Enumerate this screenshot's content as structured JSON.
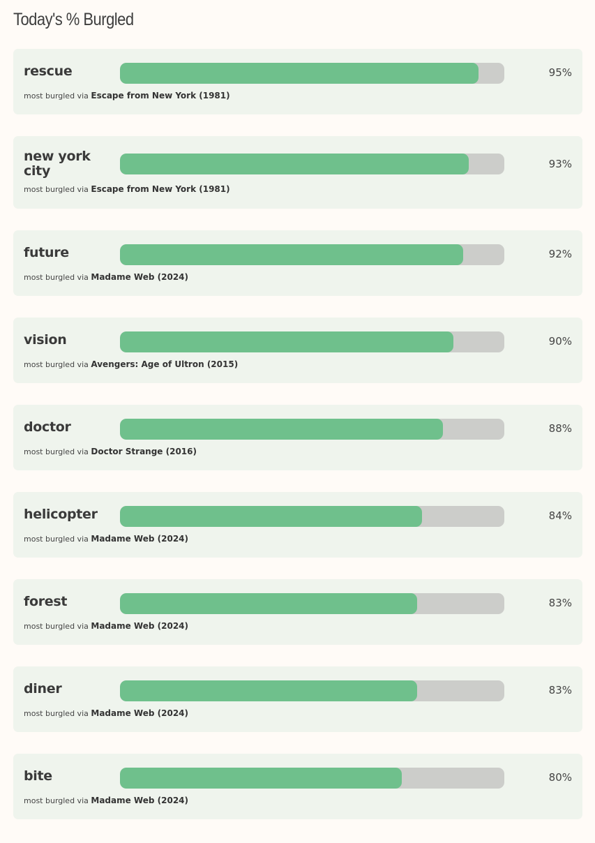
{
  "page": {
    "title": "Today's % Burgled"
  },
  "colors": {
    "background": "#fffbf7",
    "card": "#eff4ed",
    "bar_fill": "#6fc08c",
    "bar_track": "#cccdca"
  },
  "items": [
    {
      "word": "rescue",
      "percent_label": "95%",
      "percent": 95,
      "via_prefix": "most burgled via",
      "via_title": "Escape from New York (1981)"
    },
    {
      "word": "new york city",
      "percent_label": "93%",
      "percent": 93,
      "via_prefix": "most burgled via",
      "via_title": "Escape from New York (1981)"
    },
    {
      "word": "future",
      "percent_label": "92%",
      "percent": 92,
      "via_prefix": "most burgled via",
      "via_title": "Madame Web (2024)"
    },
    {
      "word": "vision",
      "percent_label": "90%",
      "percent": 90,
      "via_prefix": "most burgled via",
      "via_title": "Avengers: Age of Ultron (2015)"
    },
    {
      "word": "doctor",
      "percent_label": "88%",
      "percent": 88,
      "via_prefix": "most burgled via",
      "via_title": "Doctor Strange (2016)"
    },
    {
      "word": "helicopter",
      "percent_label": "84%",
      "percent": 84,
      "via_prefix": "most burgled via",
      "via_title": "Madame Web (2024)"
    },
    {
      "word": "forest",
      "percent_label": "83%",
      "percent": 83,
      "via_prefix": "most burgled via",
      "via_title": "Madame Web (2024)"
    },
    {
      "word": "diner",
      "percent_label": "83%",
      "percent": 83,
      "via_prefix": "most burgled via",
      "via_title": "Madame Web (2024)"
    },
    {
      "word": "bite",
      "percent_label": "80%",
      "percent": 80,
      "via_prefix": "most burgled via",
      "via_title": "Madame Web (2024)"
    }
  ]
}
